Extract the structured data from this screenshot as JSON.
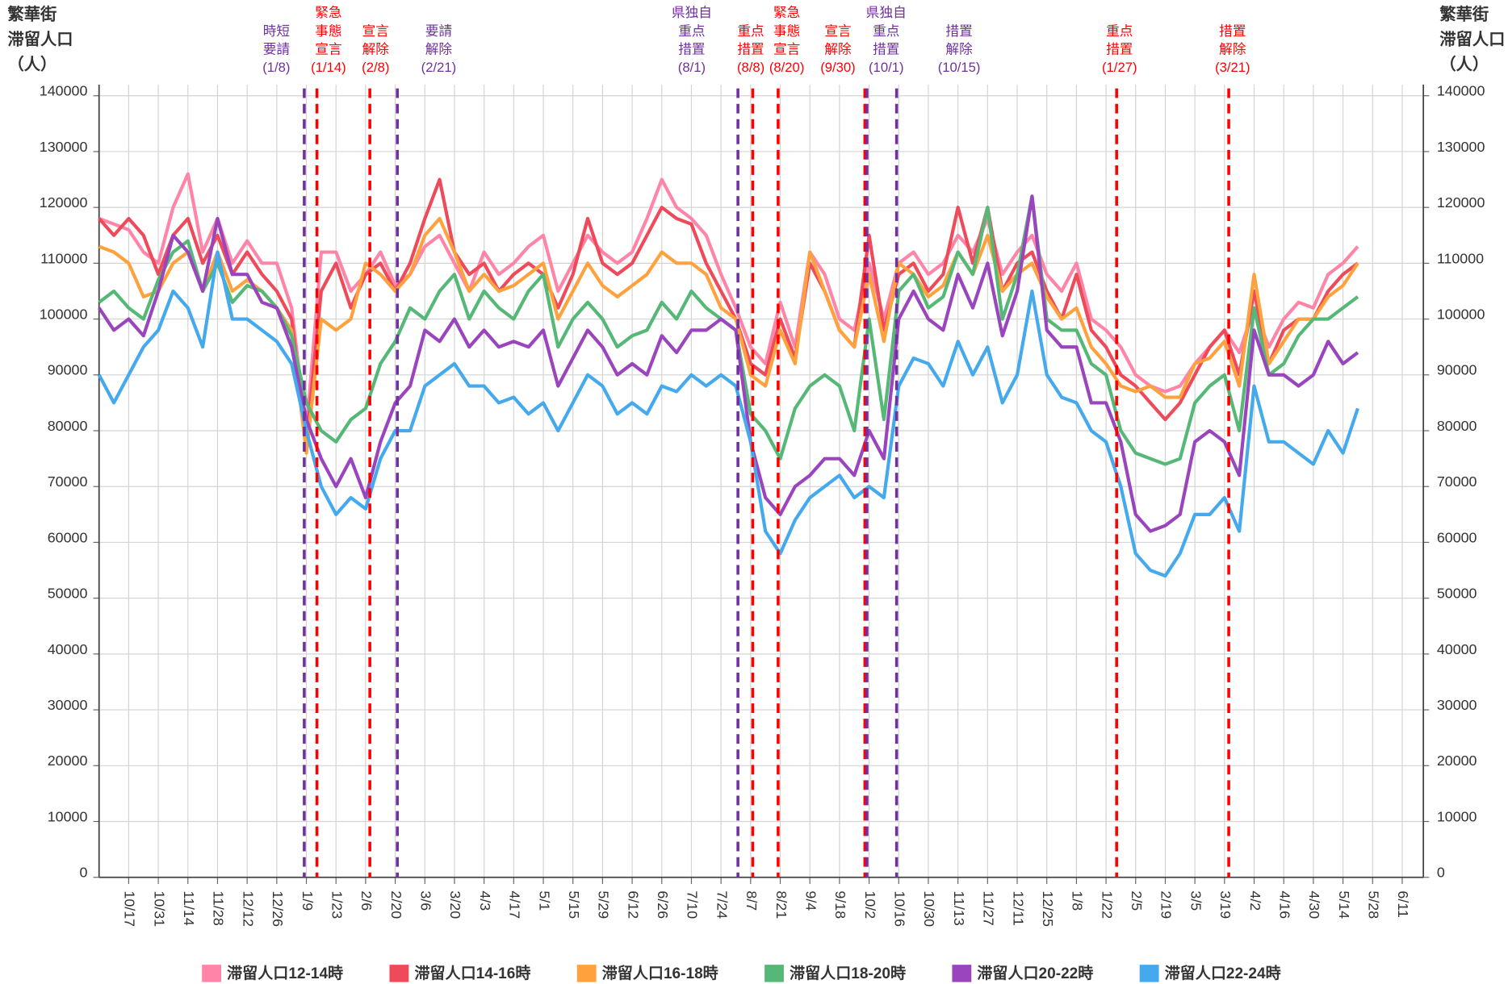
{
  "chart_data": {
    "type": "line",
    "ylabel": [
      "繁華街",
      "滞留人口",
      "（人）"
    ],
    "x": [
      -14,
      -7,
      0,
      7,
      14,
      21,
      28,
      35,
      42,
      49,
      56,
      63,
      70,
      77,
      84,
      91,
      98,
      105,
      112,
      119,
      126,
      133,
      140,
      147,
      154,
      161,
      168,
      175,
      182,
      189,
      196,
      203,
      210,
      217,
      224,
      231,
      238,
      245,
      252,
      259,
      266,
      273,
      280,
      287,
      294,
      301,
      308,
      315,
      322,
      329,
      336,
      343,
      350,
      357,
      364,
      371,
      378,
      385,
      392,
      399,
      406,
      413,
      420,
      427,
      434,
      441,
      448,
      455,
      462,
      469,
      476,
      483,
      490,
      497,
      504,
      511,
      518,
      525,
      532,
      539,
      546,
      553,
      560,
      567,
      574,
      581
    ],
    "xlim": [
      -14,
      612
    ],
    "xticks": [
      {
        "value": 0,
        "label": "10/17"
      },
      {
        "value": 14,
        "label": "10/31"
      },
      {
        "value": 28,
        "label": "11/14"
      },
      {
        "value": 42,
        "label": "11/28"
      },
      {
        "value": 56,
        "label": "12/12"
      },
      {
        "value": 70,
        "label": "12/26"
      },
      {
        "value": 84,
        "label": "1/9"
      },
      {
        "value": 98,
        "label": "1/23"
      },
      {
        "value": 112,
        "label": "2/6"
      },
      {
        "value": 126,
        "label": "2/20"
      },
      {
        "value": 140,
        "label": "3/6"
      },
      {
        "value": 154,
        "label": "3/20"
      },
      {
        "value": 168,
        "label": "4/3"
      },
      {
        "value": 182,
        "label": "4/17"
      },
      {
        "value": 196,
        "label": "5/1"
      },
      {
        "value": 210,
        "label": "5/15"
      },
      {
        "value": 224,
        "label": "5/29"
      },
      {
        "value": 238,
        "label": "6/12"
      },
      {
        "value": 252,
        "label": "6/26"
      },
      {
        "value": 266,
        "label": "7/10"
      },
      {
        "value": 280,
        "label": "7/24"
      },
      {
        "value": 294,
        "label": "8/7"
      },
      {
        "value": 308,
        "label": "8/21"
      },
      {
        "value": 322,
        "label": "9/4"
      },
      {
        "value": 336,
        "label": "9/18"
      },
      {
        "value": 350,
        "label": "10/2"
      },
      {
        "value": 364,
        "label": "10/16"
      },
      {
        "value": 378,
        "label": "10/30"
      },
      {
        "value": 392,
        "label": "11/13"
      },
      {
        "value": 406,
        "label": "11/27"
      },
      {
        "value": 420,
        "label": "12/11"
      },
      {
        "value": 434,
        "label": "12/25"
      },
      {
        "value": 448,
        "label": "1/8"
      },
      {
        "value": 462,
        "label": "1/22"
      },
      {
        "value": 476,
        "label": "2/5"
      },
      {
        "value": 490,
        "label": "2/19"
      },
      {
        "value": 504,
        "label": "3/5"
      },
      {
        "value": 518,
        "label": "3/19"
      },
      {
        "value": 532,
        "label": "4/2"
      },
      {
        "value": 546,
        "label": "4/16"
      },
      {
        "value": 560,
        "label": "4/30"
      },
      {
        "value": 574,
        "label": "5/14"
      },
      {
        "value": 588,
        "label": "5/28"
      },
      {
        "value": 602,
        "label": "6/11"
      }
    ],
    "ylim": [
      0,
      142000
    ],
    "yticks": [
      0,
      10000,
      20000,
      30000,
      40000,
      50000,
      60000,
      70000,
      80000,
      90000,
      100000,
      110000,
      120000,
      130000,
      140000
    ],
    "grid": true,
    "legend": "bottom",
    "series": [
      {
        "name": "滞留人口12-14時",
        "color": "#ff85a8",
        "values": [
          118000,
          117000,
          116000,
          112000,
          110000,
          120000,
          126000,
          112000,
          118000,
          110000,
          114000,
          110000,
          110000,
          102000,
          80000,
          112000,
          112000,
          105000,
          108000,
          112000,
          106000,
          108000,
          113000,
          115000,
          110000,
          105000,
          112000,
          108000,
          110000,
          113000,
          115000,
          105000,
          110000,
          115000,
          112000,
          110000,
          112000,
          118000,
          125000,
          120000,
          118000,
          115000,
          108000,
          102000,
          95000,
          92000,
          103000,
          95000,
          112000,
          108000,
          100000,
          98000,
          110000,
          100000,
          110000,
          112000,
          108000,
          110000,
          115000,
          112000,
          118000,
          108000,
          112000,
          115000,
          108000,
          105000,
          110000,
          100000,
          98000,
          95000,
          90000,
          88000,
          87000,
          88000,
          92000,
          95000,
          98000,
          94000,
          102000,
          95000,
          100000,
          103000,
          102000,
          108000,
          110000,
          113000
        ]
      },
      {
        "name": "滞留人口14-16時",
        "color": "#ee4a5a",
        "values": [
          118000,
          115000,
          118000,
          115000,
          108000,
          115000,
          118000,
          110000,
          115000,
          108000,
          112000,
          108000,
          105000,
          100000,
          78000,
          105000,
          110000,
          102000,
          108000,
          110000,
          105000,
          110000,
          118000,
          125000,
          112000,
          108000,
          110000,
          105000,
          108000,
          110000,
          108000,
          102000,
          108000,
          118000,
          110000,
          108000,
          110000,
          115000,
          120000,
          118000,
          117000,
          110000,
          105000,
          100000,
          92000,
          90000,
          100000,
          93000,
          110000,
          105000,
          98000,
          95000,
          115000,
          98000,
          108000,
          110000,
          105000,
          108000,
          120000,
          110000,
          120000,
          105000,
          110000,
          112000,
          105000,
          100000,
          108000,
          98000,
          95000,
          90000,
          88000,
          85000,
          82000,
          85000,
          90000,
          95000,
          98000,
          90000,
          105000,
          92000,
          98000,
          100000,
          100000,
          105000,
          108000,
          110000
        ]
      },
      {
        "name": "滞留人口16-18時",
        "color": "#ffa23e",
        "values": [
          113000,
          112000,
          110000,
          104000,
          105000,
          110000,
          112000,
          105000,
          112000,
          105000,
          107000,
          105000,
          102000,
          98000,
          76000,
          100000,
          98000,
          100000,
          110000,
          108000,
          105000,
          108000,
          115000,
          118000,
          112000,
          105000,
          108000,
          105000,
          106000,
          108000,
          110000,
          100000,
          105000,
          110000,
          106000,
          104000,
          106000,
          108000,
          112000,
          110000,
          110000,
          108000,
          102000,
          100000,
          90000,
          88000,
          98000,
          92000,
          112000,
          105000,
          98000,
          95000,
          108000,
          96000,
          110000,
          108000,
          104000,
          106000,
          112000,
          108000,
          115000,
          105000,
          108000,
          110000,
          104000,
          100000,
          102000,
          95000,
          92000,
          88000,
          87000,
          88000,
          86000,
          86000,
          92000,
          93000,
          96000,
          88000,
          108000,
          92000,
          96000,
          100000,
          100000,
          104000,
          106000,
          110000
        ]
      },
      {
        "name": "滞留人口18-20時",
        "color": "#55b877",
        "values": [
          103000,
          105000,
          102000,
          100000,
          107000,
          112000,
          114000,
          105000,
          110000,
          103000,
          106000,
          105000,
          102000,
          97000,
          85000,
          80000,
          78000,
          82000,
          84000,
          92000,
          96000,
          102000,
          100000,
          105000,
          108000,
          100000,
          105000,
          102000,
          100000,
          105000,
          108000,
          95000,
          100000,
          103000,
          100000,
          95000,
          97000,
          98000,
          103000,
          100000,
          105000,
          102000,
          100000,
          98000,
          83000,
          80000,
          75000,
          84000,
          88000,
          90000,
          88000,
          80000,
          100000,
          82000,
          105000,
          108000,
          102000,
          104000,
          112000,
          108000,
          120000,
          100000,
          108000,
          122000,
          100000,
          98000,
          98000,
          92000,
          90000,
          80000,
          76000,
          75000,
          74000,
          75000,
          85000,
          88000,
          90000,
          80000,
          102000,
          90000,
          92000,
          97000,
          100000,
          100000,
          102000,
          104000
        ]
      },
      {
        "name": "滞留人口20-22時",
        "color": "#9a45bd",
        "values": [
          102000,
          98000,
          100000,
          97000,
          105000,
          115000,
          112000,
          105000,
          118000,
          108000,
          108000,
          103000,
          102000,
          95000,
          82000,
          75000,
          70000,
          75000,
          68000,
          78000,
          85000,
          88000,
          98000,
          96000,
          100000,
          95000,
          98000,
          95000,
          96000,
          95000,
          98000,
          88000,
          93000,
          98000,
          95000,
          90000,
          92000,
          90000,
          97000,
          94000,
          98000,
          98000,
          100000,
          98000,
          78000,
          68000,
          65000,
          70000,
          72000,
          75000,
          75000,
          72000,
          80000,
          75000,
          100000,
          105000,
          100000,
          98000,
          108000,
          102000,
          110000,
          97000,
          105000,
          122000,
          98000,
          95000,
          95000,
          85000,
          85000,
          78000,
          65000,
          62000,
          63000,
          65000,
          78000,
          80000,
          78000,
          72000,
          98000,
          90000,
          90000,
          88000,
          90000,
          96000,
          92000,
          94000
        ]
      },
      {
        "name": "滞留人口22-24時",
        "color": "#45a9ee",
        "values": [
          90000,
          85000,
          90000,
          95000,
          98000,
          105000,
          102000,
          95000,
          112000,
          100000,
          100000,
          98000,
          96000,
          92000,
          80000,
          70000,
          65000,
          68000,
          66000,
          75000,
          80000,
          80000,
          88000,
          90000,
          92000,
          88000,
          88000,
          85000,
          86000,
          83000,
          85000,
          80000,
          85000,
          90000,
          88000,
          83000,
          85000,
          83000,
          88000,
          87000,
          90000,
          88000,
          90000,
          88000,
          78000,
          62000,
          58000,
          64000,
          68000,
          70000,
          72000,
          68000,
          70000,
          68000,
          88000,
          93000,
          92000,
          88000,
          96000,
          90000,
          95000,
          85000,
          90000,
          105000,
          90000,
          86000,
          85000,
          80000,
          78000,
          70000,
          58000,
          55000,
          54000,
          58000,
          65000,
          65000,
          68000,
          62000,
          88000,
          78000,
          78000,
          76000,
          74000,
          80000,
          76000,
          84000
        ]
      }
    ],
    "annotations": [
      {
        "x": 83,
        "color": "#7030a0",
        "lines": [
          "時短",
          "要請",
          "(1/8)"
        ]
      },
      {
        "x": 89,
        "color": "#ff0000",
        "lines": [
          "緊急",
          "事態",
          "宣言",
          "(1/14)"
        ]
      },
      {
        "x": 114,
        "color": "#ff0000",
        "lines": [
          "宣言",
          "解除",
          "(2/8)"
        ]
      },
      {
        "x": 127,
        "color": "#7030a0",
        "lines": [
          "要請",
          "解除",
          "(2/21)"
        ]
      },
      {
        "x": 288,
        "color": "#7030a0",
        "lines": [
          "県独自",
          "重点",
          "措置",
          "(8/1)"
        ]
      },
      {
        "x": 295,
        "color": "#ff0000",
        "lines": [
          "重点",
          "措置",
          "(8/8)"
        ]
      },
      {
        "x": 307,
        "color": "#ff0000",
        "lines": [
          "緊急",
          "事態",
          "宣言",
          "(8/20)"
        ]
      },
      {
        "x": 348,
        "color": "#ff0000",
        "lines": [
          "宣言",
          "解除",
          "(9/30)"
        ]
      },
      {
        "x": 349,
        "color": "#7030a0",
        "lines": [
          "県独自",
          "重点",
          "措置",
          "(10/1)"
        ]
      },
      {
        "x": 363,
        "color": "#7030a0",
        "lines": [
          "措置",
          "解除",
          "(10/15)"
        ]
      },
      {
        "x": 467,
        "color": "#ff0000",
        "lines": [
          "重点",
          "措置",
          "(1/27)"
        ]
      },
      {
        "x": 520,
        "color": "#ff0000",
        "lines": [
          "措置",
          "解除",
          "(3/21)"
        ]
      }
    ]
  }
}
